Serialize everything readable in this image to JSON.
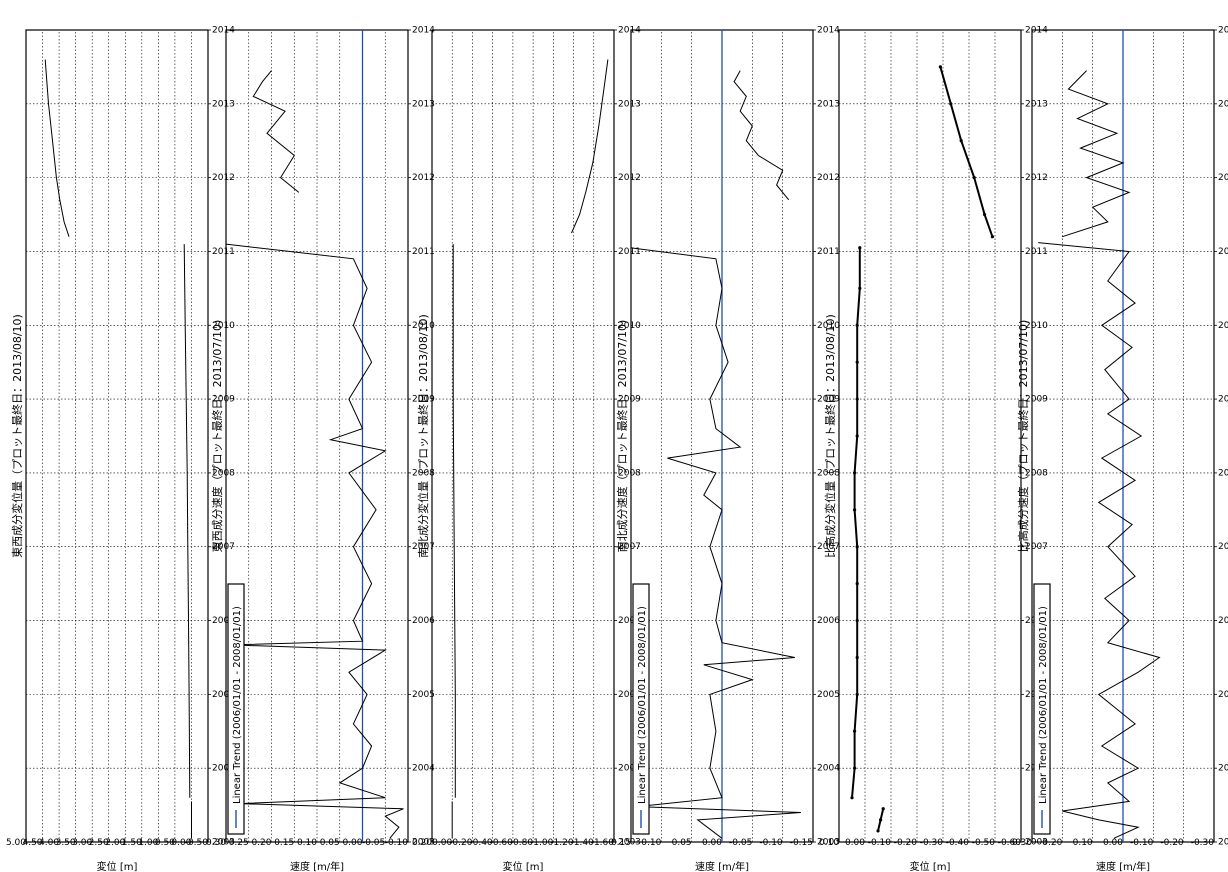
{
  "chart_data": [
    {
      "type": "line",
      "title": "東西成分変位量（プロット最終日：2013/08/10)",
      "xlabel": "",
      "ylabel": "変位 [m]",
      "xlim": [
        2003,
        2014
      ],
      "x_ticks": [
        "2003",
        "2004",
        "2005",
        "2006",
        "2007",
        "2008",
        "2009",
        "2010",
        "2011",
        "2012",
        "2013",
        "2014"
      ],
      "ylim": [
        -0.5,
        5.0
      ],
      "y_ticks": [
        "-0.50",
        "0.00",
        "0.50",
        "1.00",
        "1.50",
        "2.00",
        "2.50",
        "3.00",
        "3.50",
        "4.00",
        "4.50",
        "5.00"
      ],
      "grid": true,
      "legend": "",
      "series": [
        {
          "points": [
            [
              2003.05,
              0.0
            ],
            [
              2003.55,
              0.0
            ]
          ]
        },
        {
          "points": [
            [
              2003.6,
              0.05
            ],
            [
              2005.0,
              0.07
            ],
            [
              2006.0,
              0.09
            ],
            [
              2007.0,
              0.11
            ],
            [
              2008.0,
              0.13
            ],
            [
              2009.0,
              0.16
            ],
            [
              2010.0,
              0.19
            ],
            [
              2011.1,
              0.22
            ]
          ]
        },
        {
          "points": [
            [
              2011.2,
              3.7
            ],
            [
              2011.4,
              3.85
            ],
            [
              2011.7,
              3.98
            ],
            [
              2012.0,
              4.08
            ],
            [
              2012.5,
              4.2
            ],
            [
              2013.0,
              4.32
            ],
            [
              2013.6,
              4.42
            ]
          ]
        }
      ]
    },
    {
      "type": "line",
      "title": "東西成分速度（プロット最終日：2013/07/10)",
      "xlabel": "",
      "ylabel": "速度 [m/年]",
      "xlim": [
        2003,
        2014
      ],
      "x_ticks": [
        "2003",
        "2004",
        "2005",
        "2006",
        "2007",
        "2008",
        "2009",
        "2010",
        "2011",
        "2012",
        "2013",
        "2014"
      ],
      "ylim": [
        -0.1,
        0.3
      ],
      "y_ticks": [
        "-0.10",
        "-0.05",
        "0.00",
        "0.05",
        "0.10",
        "0.15",
        "0.20",
        "0.25",
        "0.30"
      ],
      "grid": true,
      "legend": "Linear Trend (2006/01/01 - 2008/01/01)",
      "trend_value": 0.0,
      "series": [
        {
          "points": [
            [
              2003.05,
              -0.06
            ],
            [
              2003.2,
              -0.08
            ],
            [
              2003.35,
              -0.05
            ],
            [
              2003.45,
              -0.09
            ],
            [
              2003.52,
              0.27
            ],
            [
              2003.6,
              -0.05
            ],
            [
              2003.8,
              0.05
            ],
            [
              2004.0,
              0.0
            ],
            [
              2004.3,
              -0.02
            ],
            [
              2004.6,
              0.02
            ],
            [
              2005.0,
              -0.01
            ],
            [
              2005.3,
              0.03
            ],
            [
              2005.6,
              -0.05
            ],
            [
              2005.67,
              0.29
            ],
            [
              2005.72,
              0.0
            ],
            [
              2006.0,
              0.02
            ],
            [
              2006.5,
              -0.02
            ],
            [
              2007.0,
              0.02
            ],
            [
              2007.5,
              -0.03
            ],
            [
              2008.0,
              0.03
            ],
            [
              2008.3,
              -0.05
            ],
            [
              2008.45,
              0.07
            ],
            [
              2008.6,
              0.0
            ],
            [
              2009.0,
              0.03
            ],
            [
              2009.5,
              -0.02
            ],
            [
              2010.0,
              0.02
            ],
            [
              2010.5,
              -0.01
            ],
            [
              2010.9,
              0.02
            ],
            [
              2011.1,
              0.3
            ]
          ]
        },
        {
          "points": [
            [
              2011.8,
              0.14
            ],
            [
              2012.0,
              0.18
            ],
            [
              2012.3,
              0.15
            ],
            [
              2012.6,
              0.21
            ],
            [
              2012.9,
              0.17
            ],
            [
              2013.1,
              0.24
            ],
            [
              2013.3,
              0.22
            ],
            [
              2013.45,
              0.2
            ]
          ]
        }
      ]
    },
    {
      "type": "line",
      "title": "南北成分変位量（プロット最終日：2013/08/10)",
      "xlabel": "",
      "ylabel": "変位 [m]",
      "xlim": [
        2003,
        2014
      ],
      "x_ticks": [
        "2003",
        "2004",
        "2005",
        "2006",
        "2007",
        "2008",
        "2009",
        "2010",
        "2011",
        "2012",
        "2013",
        "2014"
      ],
      "ylim": [
        -1.6,
        0.2
      ],
      "y_ticks": [
        "-1.60",
        "-1.40",
        "-1.20",
        "-1.00",
        "-0.80",
        "-0.60",
        "-0.40",
        "-0.20",
        "0.00",
        "0.20"
      ],
      "grid": true,
      "legend": "",
      "series": [
        {
          "points": [
            [
              2003.05,
              0.0
            ],
            [
              2003.55,
              0.0
            ]
          ]
        },
        {
          "points": [
            [
              2003.6,
              -0.03
            ],
            [
              2005.0,
              -0.03
            ],
            [
              2007.0,
              -0.02
            ],
            [
              2009.0,
              -0.01
            ],
            [
              2011.1,
              -0.01
            ]
          ]
        },
        {
          "points": [
            [
              2011.25,
              -1.18
            ],
            [
              2011.5,
              -1.26
            ],
            [
              2011.8,
              -1.32
            ],
            [
              2012.2,
              -1.39
            ],
            [
              2012.7,
              -1.45
            ],
            [
              2013.2,
              -1.5
            ],
            [
              2013.6,
              -1.54
            ]
          ]
        }
      ]
    },
    {
      "type": "line",
      "title": "南北成分速度（プロット最終日：2013/07/10)",
      "xlabel": "",
      "ylabel": "速度 [m/年]",
      "xlim": [
        2003,
        2014
      ],
      "x_ticks": [
        "2003",
        "2004",
        "2005",
        "2006",
        "2007",
        "2008",
        "2009",
        "2010",
        "2011",
        "2012",
        "2013",
        "2014"
      ],
      "ylim": [
        -0.15,
        0.15
      ],
      "y_ticks": [
        "-0.15",
        "-0.10",
        "-0.05",
        "0.00",
        "0.05",
        "0.10",
        "0.15"
      ],
      "grid": true,
      "legend": "Linear Trend (2006/01/01 - 2008/01/01)",
      "trend_value": 0.0,
      "series": [
        {
          "points": [
            [
              2003.05,
              0.0
            ],
            [
              2003.3,
              0.04
            ],
            [
              2003.4,
              -0.13
            ],
            [
              2003.48,
              0.14
            ],
            [
              2003.6,
              0.0
            ],
            [
              2004.0,
              0.02
            ],
            [
              2004.5,
              0.01
            ],
            [
              2005.0,
              0.02
            ],
            [
              2005.2,
              -0.05
            ],
            [
              2005.4,
              0.03
            ],
            [
              2005.5,
              -0.12
            ],
            [
              2005.7,
              0.0
            ],
            [
              2006.0,
              0.01
            ],
            [
              2006.5,
              0.0
            ],
            [
              2007.0,
              0.02
            ],
            [
              2007.5,
              0.0
            ],
            [
              2007.7,
              0.03
            ],
            [
              2008.0,
              0.01
            ],
            [
              2008.2,
              0.09
            ],
            [
              2008.35,
              -0.03
            ],
            [
              2008.6,
              0.01
            ],
            [
              2009.0,
              0.02
            ],
            [
              2009.5,
              -0.01
            ],
            [
              2010.0,
              0.01
            ],
            [
              2010.5,
              0.0
            ],
            [
              2010.9,
              0.01
            ],
            [
              2011.05,
              0.15
            ]
          ]
        },
        {
          "points": [
            [
              2011.7,
              -0.11
            ],
            [
              2011.9,
              -0.09
            ],
            [
              2012.1,
              -0.1
            ],
            [
              2012.3,
              -0.06
            ],
            [
              2012.5,
              -0.04
            ],
            [
              2012.7,
              -0.05
            ],
            [
              2012.9,
              -0.03
            ],
            [
              2013.1,
              -0.04
            ],
            [
              2013.3,
              -0.02
            ],
            [
              2013.45,
              -0.03
            ]
          ]
        }
      ]
    },
    {
      "type": "scatter",
      "title": "比高成分変位量（プロット最終日：2013/08/10)",
      "xlabel": "",
      "ylabel": "変位 [m]",
      "xlim": [
        2003,
        2014
      ],
      "x_ticks": [
        "2003",
        "2004",
        "2005",
        "2006",
        "2007",
        "2008",
        "2009",
        "2010",
        "2011",
        "2012",
        "2013",
        "2014"
      ],
      "ylim": [
        -0.6,
        0.1
      ],
      "y_ticks": [
        "-0.60",
        "-0.50",
        "-0.40",
        "-0.30",
        "-0.20",
        "-0.10",
        "0.00",
        "0.10"
      ],
      "grid": true,
      "legend": "",
      "series": [
        {
          "points": [
            [
              2003.15,
              -0.05
            ],
            [
              2003.3,
              -0.06
            ],
            [
              2003.45,
              -0.07
            ]
          ]
        },
        {
          "points": [
            [
              2003.6,
              0.05
            ],
            [
              2004.0,
              0.04
            ],
            [
              2004.5,
              0.04
            ],
            [
              2005.0,
              0.03
            ],
            [
              2005.5,
              0.03
            ],
            [
              2006.0,
              0.03
            ],
            [
              2006.5,
              0.03
            ],
            [
              2007.0,
              0.03
            ],
            [
              2007.5,
              0.04
            ],
            [
              2008.0,
              0.04
            ],
            [
              2008.5,
              0.03
            ],
            [
              2009.0,
              0.03
            ],
            [
              2009.5,
              0.03
            ],
            [
              2010.0,
              0.03
            ],
            [
              2010.5,
              0.02
            ],
            [
              2011.05,
              0.02
            ]
          ]
        },
        {
          "points": [
            [
              2011.2,
              -0.49
            ],
            [
              2011.5,
              -0.46
            ],
            [
              2012.0,
              -0.42
            ],
            [
              2012.5,
              -0.37
            ],
            [
              2013.0,
              -0.33
            ],
            [
              2013.5,
              -0.29
            ]
          ]
        }
      ]
    },
    {
      "type": "line",
      "title": "比高成分速度（プロット最終日：2013/07/10)",
      "xlabel": "",
      "ylabel": "速度 [m/年]",
      "xlim": [
        2003,
        2014
      ],
      "x_ticks": [
        "2003",
        "2004",
        "2005",
        "2006",
        "2007",
        "2008",
        "2009",
        "2010",
        "2011",
        "2012",
        "2013",
        "2014"
      ],
      "ylim": [
        -0.3,
        0.3
      ],
      "y_ticks": [
        "-0.30",
        "-0.20",
        "-0.10",
        "0.00",
        "0.10",
        "0.20",
        "0.30"
      ],
      "grid": true,
      "legend": "Linear Trend (2006/01/01 - 2008/01/01)",
      "trend_value": 0.0,
      "series": [
        {
          "points": [
            [
              2003.05,
              0.03
            ],
            [
              2003.2,
              -0.05
            ],
            [
              2003.3,
              0.08
            ],
            [
              2003.42,
              0.2
            ],
            [
              2003.55,
              -0.02
            ],
            [
              2003.8,
              0.05
            ],
            [
              2004.0,
              -0.05
            ],
            [
              2004.3,
              0.07
            ],
            [
              2004.6,
              -0.04
            ],
            [
              2005.0,
              0.08
            ],
            [
              2005.3,
              -0.05
            ],
            [
              2005.5,
              -0.12
            ],
            [
              2005.7,
              0.05
            ],
            [
              2006.0,
              -0.02
            ],
            [
              2006.3,
              0.06
            ],
            [
              2006.6,
              -0.04
            ],
            [
              2007.0,
              0.05
            ],
            [
              2007.3,
              -0.03
            ],
            [
              2007.6,
              0.08
            ],
            [
              2007.9,
              -0.04
            ],
            [
              2008.2,
              0.07
            ],
            [
              2008.5,
              -0.06
            ],
            [
              2008.8,
              0.05
            ],
            [
              2009.0,
              -0.02
            ],
            [
              2009.4,
              0.06
            ],
            [
              2009.7,
              -0.03
            ],
            [
              2010.0,
              0.07
            ],
            [
              2010.3,
              -0.04
            ],
            [
              2010.6,
              0.05
            ],
            [
              2011.0,
              -0.02
            ],
            [
              2011.12,
              0.28
            ]
          ]
        },
        {
          "points": [
            [
              2011.2,
              0.2
            ],
            [
              2011.4,
              0.05
            ],
            [
              2011.6,
              0.1
            ],
            [
              2011.8,
              -0.02
            ],
            [
              2012.0,
              0.12
            ],
            [
              2012.2,
              0.0
            ],
            [
              2012.4,
              0.14
            ],
            [
              2012.6,
              0.02
            ],
            [
              2012.8,
              0.15
            ],
            [
              2013.0,
              0.05
            ],
            [
              2013.2,
              0.18
            ],
            [
              2013.45,
              0.12
            ]
          ]
        }
      ]
    }
  ]
}
